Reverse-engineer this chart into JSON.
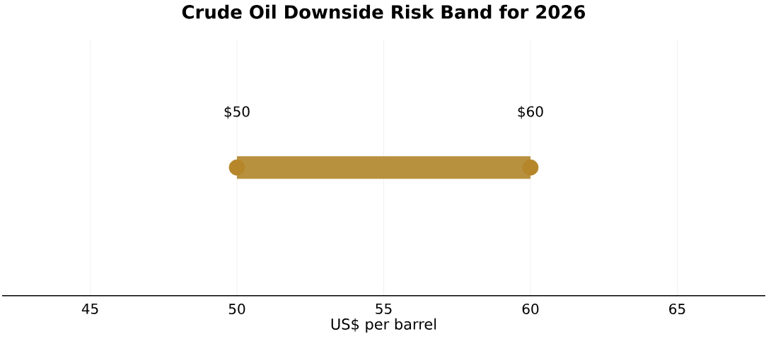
{
  "chart_data": {
    "type": "bar",
    "orientation": "horizontal",
    "title": "Crude Oil Downside Risk Band for 2026",
    "xlabel": "US$ per barrel",
    "categories": [
      null
    ],
    "series": [
      {
        "base": [
          50
        ],
        "values": [
          10
        ],
        "color": "#b8913f"
      },
      {
        "type": "scatter",
        "x": [
          null,
          null
        ],
        "values": [
          50,
          60
        ],
        "color": "#b5862a",
        "marker": "circle"
      }
    ],
    "xlim": [
      42,
      68
    ],
    "xticks": [
      45,
      50,
      55,
      60,
      65
    ],
    "grid": "x",
    "annotations": [
      "$50",
      "$60"
    ]
  }
}
